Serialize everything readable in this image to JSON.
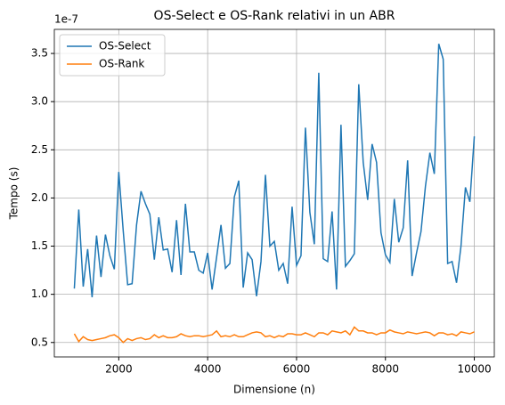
{
  "chart_data": {
    "type": "line",
    "title": "OS-Select e OS-Rank relativi in un ABR",
    "x_label": "Dimensione (n)",
    "y_label": "Tempo (s)",
    "y_offset_label": "1e-7",
    "x": [
      1000,
      1100,
      1200,
      1300,
      1400,
      1500,
      1600,
      1700,
      1800,
      1900,
      2000,
      2100,
      2200,
      2300,
      2400,
      2500,
      2600,
      2700,
      2800,
      2900,
      3000,
      3100,
      3200,
      3300,
      3400,
      3500,
      3600,
      3700,
      3800,
      3900,
      4000,
      4100,
      4200,
      4300,
      4400,
      4500,
      4600,
      4700,
      4800,
      4900,
      5000,
      5100,
      5200,
      5300,
      5400,
      5500,
      5600,
      5700,
      5800,
      5900,
      6000,
      6100,
      6200,
      6300,
      6400,
      6500,
      6600,
      6700,
      6800,
      6900,
      7000,
      7100,
      7200,
      7300,
      7400,
      7500,
      7600,
      7700,
      7800,
      7900,
      8000,
      8100,
      8200,
      8300,
      8400,
      8500,
      8600,
      8700,
      8800,
      8900,
      9000,
      9100,
      9200,
      9300,
      9400,
      9500,
      9600,
      9700,
      9800,
      9900,
      10000
    ],
    "series": [
      {
        "name": "OS-Select",
        "color": "#1f77b4",
        "values": [
          1.06,
          1.88,
          1.08,
          1.47,
          0.97,
          1.61,
          1.18,
          1.62,
          1.4,
          1.26,
          2.27,
          1.66,
          1.1,
          1.11,
          1.72,
          2.07,
          1.94,
          1.83,
          1.36,
          1.8,
          1.46,
          1.47,
          1.23,
          1.77,
          1.2,
          1.94,
          1.44,
          1.44,
          1.25,
          1.22,
          1.43,
          1.05,
          1.38,
          1.72,
          1.27,
          1.32,
          2.01,
          2.18,
          1.07,
          1.43,
          1.36,
          0.98,
          1.34,
          2.24,
          1.5,
          1.55,
          1.25,
          1.32,
          1.11,
          1.91,
          1.3,
          1.4,
          2.73,
          1.85,
          1.52,
          3.3,
          1.37,
          1.34,
          1.86,
          1.05,
          2.76,
          1.29,
          1.35,
          1.42,
          3.18,
          2.37,
          1.98,
          2.56,
          2.37,
          1.64,
          1.41,
          1.33,
          1.99,
          1.54,
          1.69,
          2.39,
          1.19,
          1.43,
          1.65,
          2.12,
          2.47,
          2.25,
          3.6,
          3.44,
          1.32,
          1.34,
          1.12,
          1.5,
          2.11,
          1.96,
          2.64
        ]
      },
      {
        "name": "OS-Rank",
        "color": "#ff7f0e",
        "values": [
          0.59,
          0.51,
          0.56,
          0.53,
          0.52,
          0.53,
          0.54,
          0.55,
          0.57,
          0.58,
          0.55,
          0.5,
          0.54,
          0.52,
          0.54,
          0.55,
          0.53,
          0.54,
          0.58,
          0.55,
          0.57,
          0.55,
          0.55,
          0.56,
          0.59,
          0.57,
          0.56,
          0.57,
          0.57,
          0.56,
          0.57,
          0.58,
          0.62,
          0.56,
          0.57,
          0.56,
          0.58,
          0.56,
          0.56,
          0.58,
          0.6,
          0.61,
          0.6,
          0.56,
          0.57,
          0.55,
          0.57,
          0.56,
          0.59,
          0.59,
          0.58,
          0.58,
          0.6,
          0.58,
          0.56,
          0.6,
          0.6,
          0.58,
          0.62,
          0.61,
          0.6,
          0.62,
          0.58,
          0.66,
          0.62,
          0.62,
          0.6,
          0.6,
          0.58,
          0.6,
          0.6,
          0.63,
          0.61,
          0.6,
          0.59,
          0.61,
          0.6,
          0.59,
          0.6,
          0.61,
          0.6,
          0.57,
          0.6,
          0.6,
          0.58,
          0.59,
          0.57,
          0.61,
          0.6,
          0.59,
          0.61
        ]
      }
    ],
    "xlim": [
      550,
      10450
    ],
    "ylim": [
      0.35,
      3.75
    ],
    "xticks": [
      2000,
      4000,
      6000,
      8000,
      10000
    ],
    "yticks": [
      0.5,
      {
        "value": 1,
        "label": "1.0"
      },
      1.5,
      {
        "value": 2,
        "label": "2.0"
      },
      2.5,
      {
        "value": 3,
        "label": "3.0"
      },
      3.5
    ],
    "grid": true,
    "legend": "upper left"
  }
}
